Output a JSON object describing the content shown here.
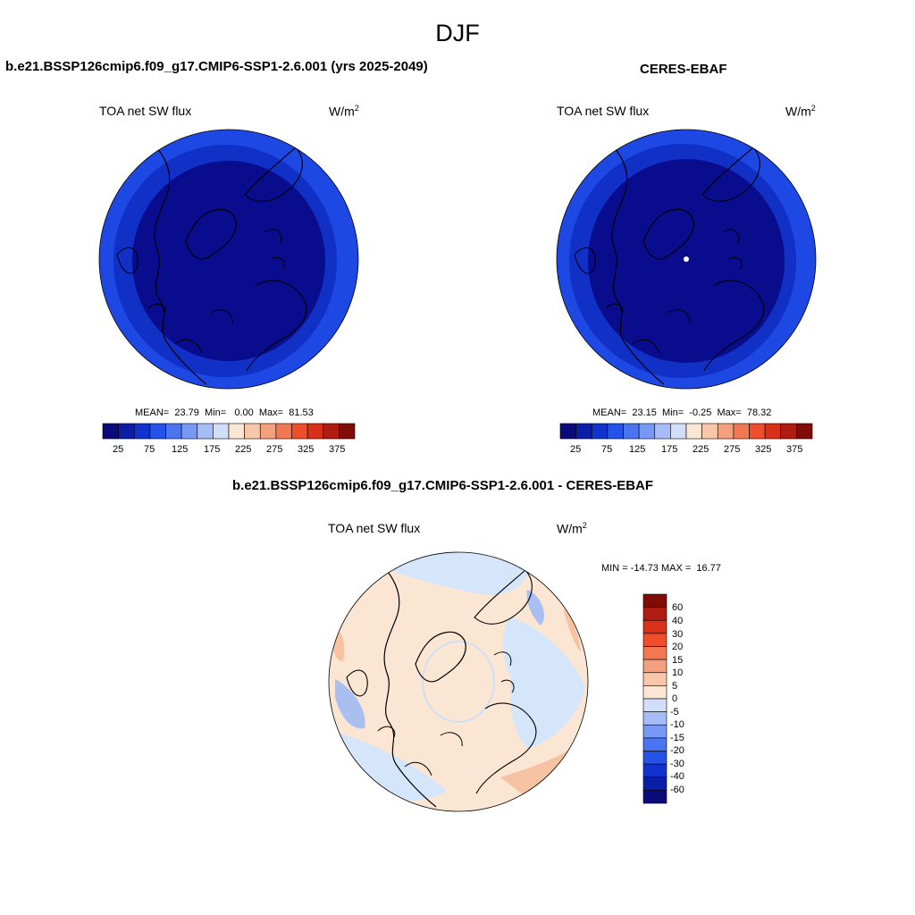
{
  "season": "DJF",
  "panels": [
    {
      "title": "b.e21.BSSP126cmip6.f09_g17.CMIP6-SSP1-2.6.001 (yrs 2025-2049)",
      "field": "TOA net SW flux",
      "units_base": "W/m",
      "units_exp": "2",
      "stats": {
        "mean_label": "MEAN=",
        "mean": "23.79",
        "min_label": "Min=",
        "min": "0.00",
        "max_label": "Max=",
        "max": "81.53"
      }
    },
    {
      "title": "CERES-EBAF",
      "field": "TOA net SW flux",
      "units_base": "W/m",
      "units_exp": "2",
      "stats": {
        "mean_label": "MEAN=",
        "mean": "23.15",
        "min_label": "Min=",
        "min": "-0.25",
        "max_label": "Max=",
        "max": "78.32"
      }
    },
    {
      "title": "b.e21.BSSP126cmip6.f09_g17.CMIP6-SSP1-2.6.001 - CERES-EBAF",
      "field": "TOA net SW flux",
      "units_base": "W/m",
      "units_exp": "2",
      "stats": {
        "text": "MIN = -14.73 MAX =  16.77"
      }
    }
  ],
  "abs_colorbar": {
    "colors": [
      "#0a0a7a",
      "#0b1ea8",
      "#1232d0",
      "#2552e8",
      "#4a74f0",
      "#7798f4",
      "#a6bcf6",
      "#d2def9",
      "#fbe6d3",
      "#f8c6a8",
      "#f5a07c",
      "#f27852",
      "#ee4e2c",
      "#d9301a",
      "#b11c10",
      "#800c08"
    ],
    "tick_labels": [
      "25",
      "75",
      "125",
      "175",
      "225",
      "275",
      "325",
      "375"
    ]
  },
  "diff_colorbar": {
    "colors": [
      "#0a0a7a",
      "#0b1ea8",
      "#1232d0",
      "#2552e8",
      "#4a74f0",
      "#7798f4",
      "#a6bcf6",
      "#d2def9",
      "#fbe6d3",
      "#f8c6a8",
      "#f5a07c",
      "#f27852",
      "#ee4e2c",
      "#d9301a",
      "#b11c10",
      "#800c08"
    ],
    "tick_labels": [
      "60",
      "40",
      "30",
      "20",
      "15",
      "10",
      "5",
      "0",
      "-5",
      "-10",
      "-15",
      "-20",
      "-30",
      "-40",
      "-60"
    ]
  },
  "colors": {
    "abs_outer": "#1d48e3",
    "abs_mid": "#1030c6",
    "abs_inner": "#0a0c8e",
    "diff_pos": "#fbe6d3",
    "diff_neg": "#d6e6fa",
    "diff_warm": "#f6c2a2",
    "diff_cool": "#a9bff0"
  }
}
